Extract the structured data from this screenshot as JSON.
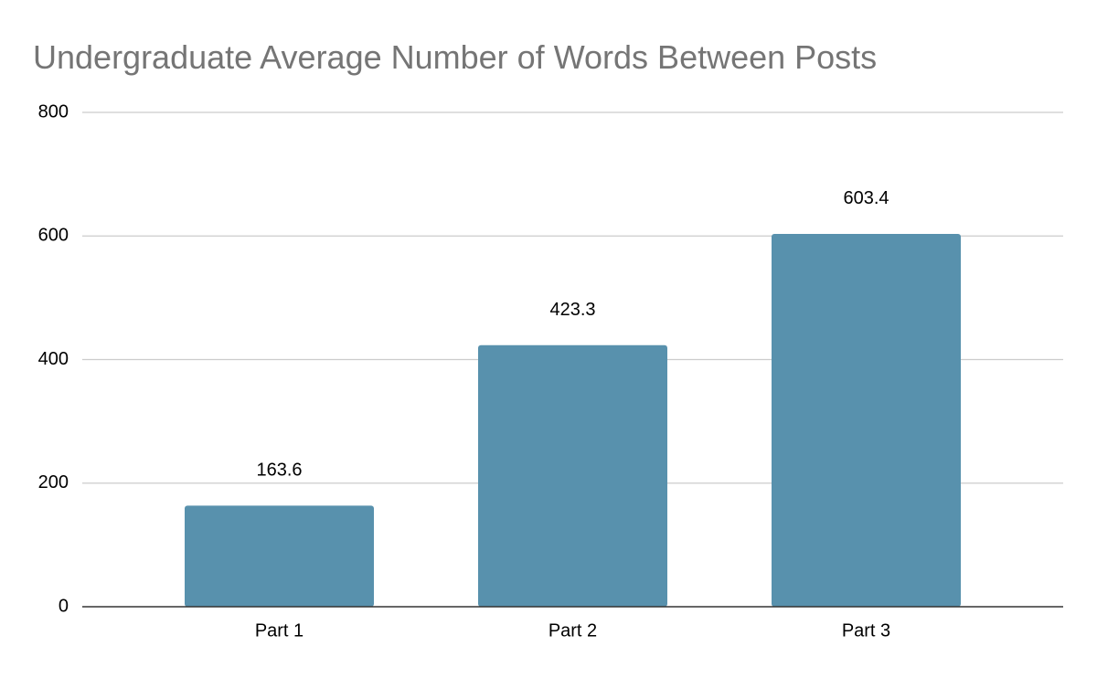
{
  "chart_data": {
    "type": "bar",
    "title": "Undergraduate Average Number of Words Between Posts",
    "categories": [
      "Part 1",
      "Part 2",
      "Part 3"
    ],
    "values": [
      163.6,
      423.3,
      603.4
    ],
    "color": "#5891ad",
    "ylim": [
      0,
      800
    ],
    "yticks": [
      0,
      200,
      400,
      600,
      800
    ],
    "grid": true
  }
}
